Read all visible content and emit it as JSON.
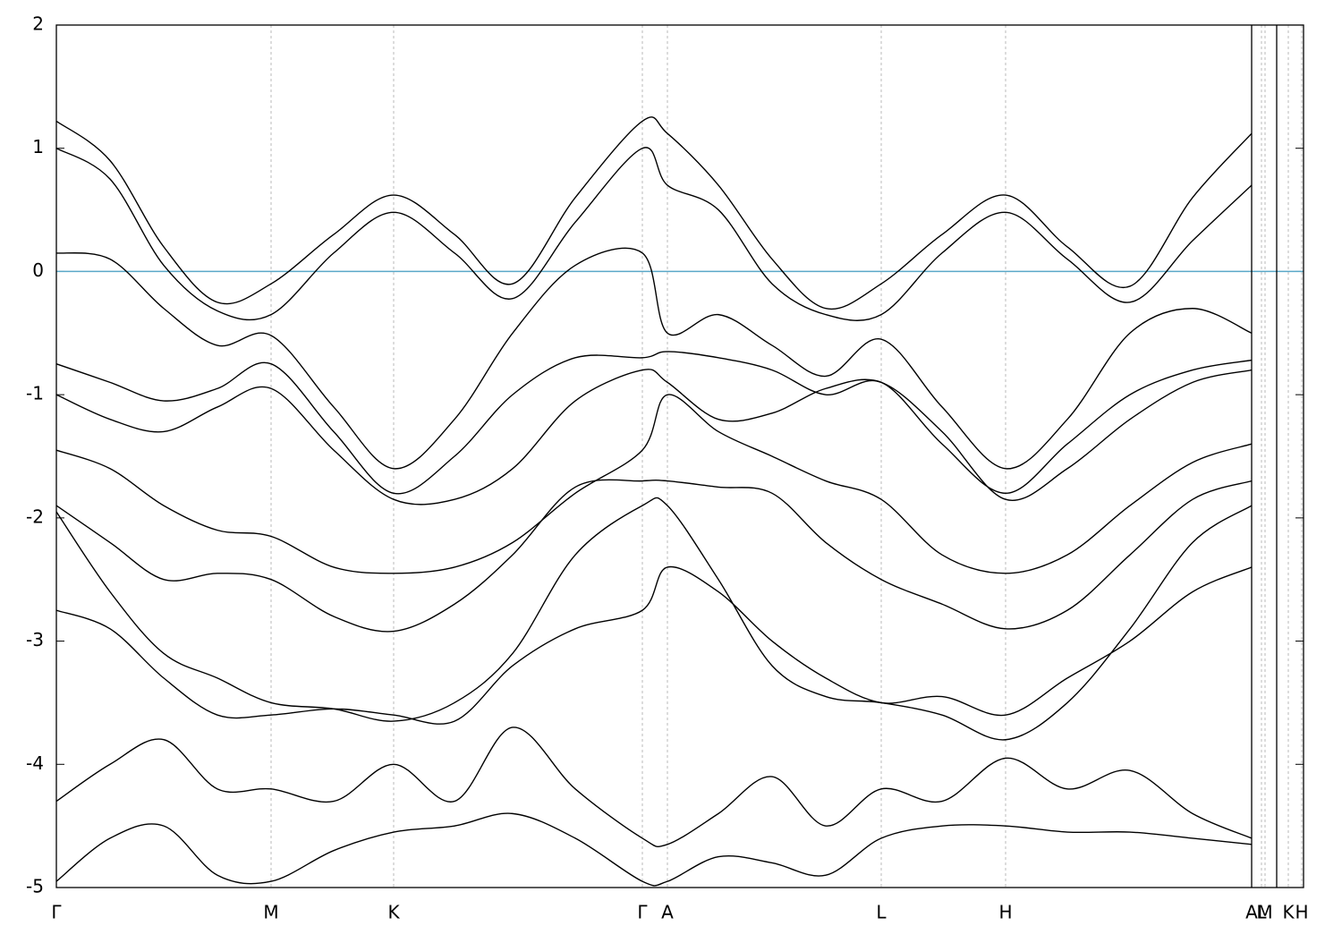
{
  "chart_data": {
    "type": "line",
    "x": [
      0,
      0.6,
      1.2,
      1.8,
      2.4,
      3.1,
      3.77,
      4.45,
      5.1,
      5.8,
      6.55,
      6.83,
      7.4,
      8.0,
      8.6,
      9.22,
      9.9,
      10.61,
      11.3,
      12.0,
      12.7,
      13.36
    ],
    "series": [
      {
        "color": "#000000",
        "values": [
          1.22,
          0.9,
          0.2,
          -0.25,
          -0.1,
          0.3,
          0.62,
          0.3,
          -0.1,
          0.6,
          1.22,
          1.12,
          0.7,
          0.1,
          -0.3,
          -0.1,
          0.3,
          0.62,
          0.2,
          -0.12,
          0.6,
          1.12
        ]
      },
      {
        "color": "#000000",
        "values": [
          1.0,
          0.75,
          0.05,
          -0.32,
          -0.35,
          0.15,
          0.48,
          0.15,
          -0.22,
          0.4,
          1.0,
          0.7,
          0.5,
          -0.1,
          -0.35,
          -0.35,
          0.15,
          0.48,
          0.1,
          -0.25,
          0.25,
          0.7
        ]
      },
      {
        "color": "#000000",
        "values": [
          0.15,
          0.1,
          -0.3,
          -0.6,
          -0.52,
          -1.1,
          -1.6,
          -1.2,
          -0.5,
          0.05,
          0.15,
          -0.5,
          -0.35,
          -0.6,
          -0.85,
          -0.55,
          -1.1,
          -1.6,
          -1.2,
          -0.5,
          -0.3,
          -0.5
        ]
      },
      {
        "color": "#000000",
        "values": [
          -0.75,
          -0.9,
          -1.05,
          -0.95,
          -0.75,
          -1.3,
          -1.8,
          -1.5,
          -1.0,
          -0.7,
          -0.7,
          -0.65,
          -0.7,
          -0.8,
          -1.0,
          -0.9,
          -1.4,
          -1.8,
          -1.4,
          -1.0,
          -0.8,
          -0.72
        ]
      },
      {
        "color": "#000000",
        "values": [
          -1.0,
          -1.2,
          -1.3,
          -1.1,
          -0.95,
          -1.45,
          -1.85,
          -1.85,
          -1.6,
          -1.05,
          -0.8,
          -0.9,
          -1.2,
          -1.15,
          -0.95,
          -0.9,
          -1.3,
          -1.85,
          -1.6,
          -1.2,
          -0.9,
          -0.8
        ]
      },
      {
        "color": "#000000",
        "values": [
          -1.45,
          -1.6,
          -1.9,
          -2.1,
          -2.15,
          -2.4,
          -2.45,
          -2.4,
          -2.2,
          -1.8,
          -1.45,
          -1.0,
          -1.3,
          -1.5,
          -1.7,
          -1.85,
          -2.3,
          -2.45,
          -2.3,
          -1.9,
          -1.55,
          -1.4
        ]
      },
      {
        "color": "#000000",
        "values": [
          -1.9,
          -2.2,
          -2.5,
          -2.45,
          -2.5,
          -2.8,
          -2.92,
          -2.7,
          -2.3,
          -1.75,
          -1.7,
          -1.7,
          -1.75,
          -1.8,
          -2.2,
          -2.5,
          -2.7,
          -2.9,
          -2.75,
          -2.3,
          -1.85,
          -1.7
        ]
      },
      {
        "color": "#000000",
        "values": [
          -1.95,
          -2.6,
          -3.1,
          -3.3,
          -3.5,
          -3.55,
          -3.65,
          -3.5,
          -3.1,
          -2.3,
          -1.9,
          -1.9,
          -2.5,
          -3.2,
          -3.45,
          -3.5,
          -3.6,
          -3.8,
          -3.5,
          -2.9,
          -2.2,
          -1.9
        ]
      },
      {
        "color": "#000000",
        "values": [
          -2.75,
          -2.9,
          -3.3,
          -3.6,
          -3.6,
          -3.55,
          -3.6,
          -3.65,
          -3.2,
          -2.9,
          -2.75,
          -2.4,
          -2.6,
          -3.0,
          -3.3,
          -3.5,
          -3.45,
          -3.6,
          -3.3,
          -3.0,
          -2.6,
          -2.4
        ]
      },
      {
        "color": "#000000",
        "values": [
          -4.3,
          -4.0,
          -3.8,
          -4.2,
          -4.2,
          -4.3,
          -4.0,
          -4.3,
          -3.7,
          -4.2,
          -4.6,
          -4.65,
          -4.4,
          -4.1,
          -4.5,
          -4.2,
          -4.3,
          -3.95,
          -4.2,
          -4.05,
          -4.4,
          -4.6
        ]
      },
      {
        "color": "#000000",
        "values": [
          -4.95,
          -4.6,
          -4.5,
          -4.9,
          -4.95,
          -4.7,
          -4.55,
          -4.5,
          -4.4,
          -4.6,
          -4.95,
          -4.95,
          -4.75,
          -4.8,
          -4.9,
          -4.6,
          -4.5,
          -4.5,
          -4.55,
          -4.55,
          -4.6,
          -4.65
        ]
      }
    ],
    "xlim": [
      0,
      13.94
    ],
    "ylim": [
      -5,
      2
    ],
    "xticks": [
      {
        "value": 0,
        "label": "Γ"
      },
      {
        "value": 2.4,
        "label": "M"
      },
      {
        "value": 3.77,
        "label": "K"
      },
      {
        "value": 6.55,
        "label": "Γ"
      },
      {
        "value": 6.83,
        "label": "A"
      },
      {
        "value": 9.22,
        "label": "L"
      },
      {
        "value": 10.61,
        "label": "H"
      },
      {
        "value": 13.36,
        "label": "A"
      },
      {
        "value": 13.47,
        "label": "L"
      },
      {
        "value": 13.51,
        "label": "M"
      },
      {
        "value": 13.77,
        "label": "K"
      },
      {
        "value": 13.92,
        "label": "H"
      }
    ],
    "yticks": [
      2,
      1,
      0,
      -1,
      -2,
      -3,
      -4,
      -5
    ],
    "breaks": [
      13.36,
      13.64
    ],
    "fermi_level": 0,
    "fermi_color": "#5aa8c8",
    "grid": true
  }
}
